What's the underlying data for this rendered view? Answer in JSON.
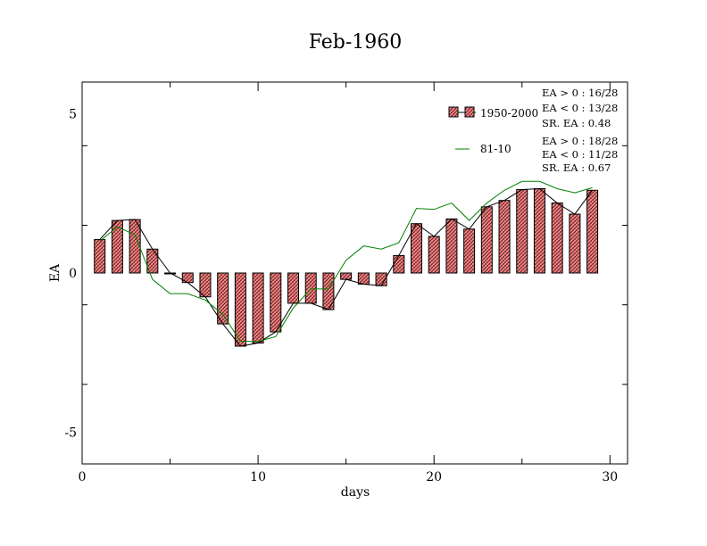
{
  "chart_data": {
    "type": "bar",
    "title": "Feb-1960",
    "xlabel": "days",
    "ylabel": "EA",
    "xlim": [
      0,
      31
    ],
    "ylim": [
      -6,
      6
    ],
    "x_ticks": [
      0,
      10,
      20,
      30
    ],
    "y_ticks": [
      -5,
      0,
      5
    ],
    "legend_position": "top-right",
    "series": [
      {
        "name": "1950-2000",
        "kind": "bar",
        "color": "#ff8080",
        "hatch_color": "#000000",
        "outline_line_color": "#000000",
        "x": [
          1,
          2,
          3,
          4,
          5,
          6,
          7,
          8,
          9,
          10,
          11,
          12,
          13,
          14,
          15,
          16,
          17,
          18,
          19,
          20,
          21,
          22,
          23,
          24,
          25,
          26,
          27,
          28,
          29
        ],
        "values": [
          1.05,
          1.65,
          1.68,
          0.75,
          0.0,
          -0.3,
          -0.75,
          -1.6,
          -2.3,
          -2.2,
          -1.85,
          -0.95,
          -0.95,
          -1.15,
          -0.2,
          -0.35,
          -0.4,
          0.55,
          1.55,
          1.15,
          1.7,
          1.38,
          2.08,
          2.28,
          2.62,
          2.65,
          2.2,
          1.85,
          2.6
        ]
      },
      {
        "name": "81-10",
        "kind": "line",
        "color": "#008000",
        "x": [
          1,
          2,
          3,
          4,
          5,
          6,
          7,
          8,
          9,
          10,
          11,
          12,
          13,
          14,
          15,
          16,
          17,
          18,
          19,
          20,
          21,
          22,
          23,
          24,
          25,
          26,
          27,
          28,
          29
        ],
        "values": [
          1.0,
          1.45,
          1.2,
          -0.2,
          -0.65,
          -0.65,
          -0.85,
          -1.3,
          -2.15,
          -2.15,
          -2.0,
          -1.1,
          -0.5,
          -0.5,
          0.4,
          0.85,
          0.75,
          0.95,
          2.03,
          2.0,
          2.2,
          1.65,
          2.2,
          2.6,
          2.88,
          2.88,
          2.65,
          2.52,
          2.68
        ]
      }
    ],
    "annotations": {
      "group1": [
        "EA > 0 : 16/28",
        "EA < 0 : 13/28",
        "SR. EA :  0.48"
      ],
      "group2": [
        "EA > 0 : 18/28",
        "EA < 0 : 11/28",
        "SR. EA :  0.67"
      ]
    }
  }
}
